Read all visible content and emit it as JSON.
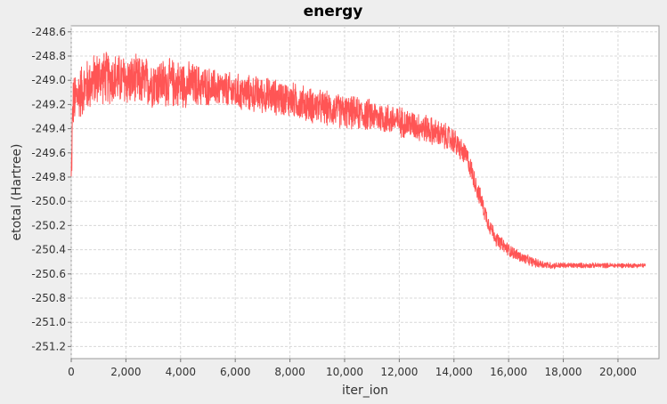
{
  "chart_data": {
    "type": "line",
    "title": "energy",
    "xlabel": "iter_ion",
    "ylabel": "etotal (Hartree)",
    "xlim": [
      0,
      21500
    ],
    "ylim": [
      -251.3,
      -248.55
    ],
    "x_ticks": [
      0,
      2000,
      4000,
      6000,
      8000,
      10000,
      12000,
      14000,
      16000,
      18000,
      20000
    ],
    "x_tick_labels": [
      "0",
      "2,000",
      "4,000",
      "6,000",
      "8,000",
      "10,000",
      "12,000",
      "14,000",
      "16,000",
      "18,000",
      "20,000"
    ],
    "y_ticks": [
      -248.6,
      -248.8,
      -249.0,
      -249.2,
      -249.4,
      -249.6,
      -249.8,
      -250.0,
      -250.2,
      -250.4,
      -250.6,
      -250.8,
      -251.0,
      -251.2
    ],
    "y_tick_labels": [
      "-248.6",
      "-248.8",
      "-249.0",
      "-249.2",
      "-249.4",
      "-249.6",
      "-249.8",
      "-250.0",
      "-250.2",
      "-250.4",
      "-250.6",
      "-250.8",
      "-251.0",
      "-251.2"
    ],
    "grid": true,
    "colors": {
      "series": "#ff5555",
      "plot_bg": "#ffffff",
      "page_bg": "#eeeeee",
      "grid": "#d8d8d8"
    },
    "series": [
      {
        "trend": [
          [
            0,
            -249.85
          ],
          [
            60,
            -249.2
          ],
          [
            300,
            -249.1
          ],
          [
            1000,
            -248.97
          ],
          [
            2000,
            -249.0
          ],
          [
            3000,
            -249.02
          ],
          [
            4000,
            -249.03
          ],
          [
            5000,
            -249.05
          ],
          [
            6000,
            -249.1
          ],
          [
            7000,
            -249.12
          ],
          [
            8000,
            -249.16
          ],
          [
            9000,
            -249.22
          ],
          [
            10000,
            -249.26
          ],
          [
            11000,
            -249.29
          ],
          [
            12000,
            -249.34
          ],
          [
            13000,
            -249.4
          ],
          [
            14000,
            -249.5
          ],
          [
            14500,
            -249.65
          ],
          [
            15000,
            -250.0
          ],
          [
            15300,
            -250.2
          ],
          [
            15600,
            -250.33
          ],
          [
            16000,
            -250.4
          ],
          [
            16500,
            -250.47
          ],
          [
            17000,
            -250.51
          ],
          [
            17500,
            -250.53
          ],
          [
            18000,
            -250.53
          ],
          [
            19000,
            -250.53
          ],
          [
            20000,
            -250.53
          ],
          [
            21000,
            -250.53
          ]
        ],
        "noise": [
          [
            0,
            0.25
          ],
          [
            4000,
            0.22
          ],
          [
            5200,
            0.17
          ],
          [
            9000,
            0.16
          ],
          [
            12000,
            0.14
          ],
          [
            14000,
            0.12
          ],
          [
            15500,
            0.07
          ],
          [
            17000,
            0.04
          ],
          [
            18000,
            0.025
          ],
          [
            21000,
            0.02
          ]
        ]
      }
    ]
  }
}
